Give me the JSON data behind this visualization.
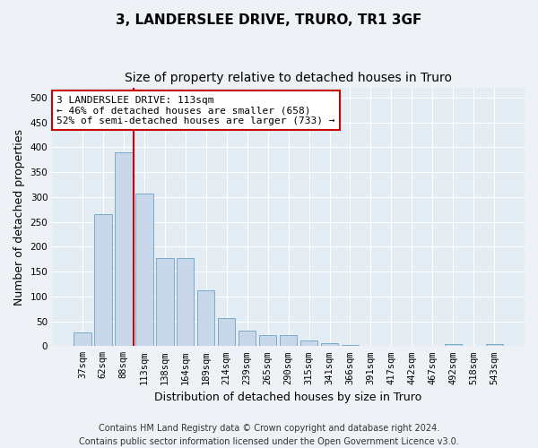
{
  "title": "3, LANDERSLEE DRIVE, TRURO, TR1 3GF",
  "subtitle": "Size of property relative to detached houses in Truro",
  "xlabel": "Distribution of detached houses by size in Truro",
  "ylabel": "Number of detached properties",
  "categories": [
    "37sqm",
    "62sqm",
    "88sqm",
    "113sqm",
    "138sqm",
    "164sqm",
    "189sqm",
    "214sqm",
    "239sqm",
    "265sqm",
    "290sqm",
    "315sqm",
    "341sqm",
    "366sqm",
    "391sqm",
    "417sqm",
    "442sqm",
    "467sqm",
    "492sqm",
    "518sqm",
    "543sqm"
  ],
  "values": [
    27,
    265,
    390,
    308,
    178,
    178,
    113,
    57,
    32,
    23,
    23,
    12,
    6,
    2,
    1,
    1,
    0,
    0,
    5,
    0,
    4
  ],
  "bar_color": "#c8d8ea",
  "bar_edgecolor": "#7aaaca",
  "vline_x_index": 3,
  "vline_color": "#cc0000",
  "annotation_text": "3 LANDERSLEE DRIVE: 113sqm\n← 46% of detached houses are smaller (658)\n52% of semi-detached houses are larger (733) →",
  "annotation_box_edgecolor": "#cc0000",
  "annotation_box_facecolor": "#ffffff",
  "ylim": [
    0,
    520
  ],
  "yticks": [
    0,
    50,
    100,
    150,
    200,
    250,
    300,
    350,
    400,
    450,
    500
  ],
  "footer_line1": "Contains HM Land Registry data © Crown copyright and database right 2024.",
  "footer_line2": "Contains public sector information licensed under the Open Government Licence v3.0.",
  "bg_color": "#eef2f7",
  "plot_bg_color": "#e4ecf4",
  "title_fontsize": 11,
  "subtitle_fontsize": 10,
  "tick_fontsize": 7.5,
  "label_fontsize": 9,
  "annotation_fontsize": 8,
  "footer_fontsize": 7
}
